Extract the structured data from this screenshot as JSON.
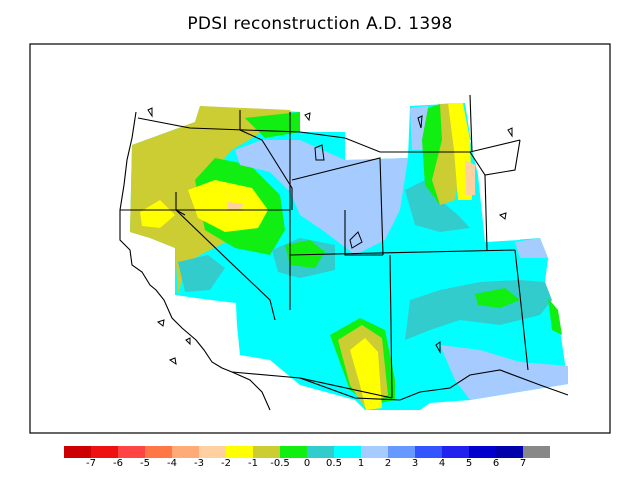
{
  "title": "PDSI reconstruction A.D. 1398",
  "legend": {
    "colors": [
      "#cc0000",
      "#ee1111",
      "#ff4444",
      "#ff7744",
      "#ffaa77",
      "#ffd0a0",
      "#ffff00",
      "#cccc33",
      "#11ee11",
      "#33cccc",
      "#00ffff",
      "#a6ccff",
      "#6699ff",
      "#3355ff",
      "#2222ee",
      "#0000cc",
      "#0000aa",
      "#888888"
    ],
    "ticks": [
      "-7",
      "-6",
      "-5",
      "-4",
      "-3",
      "-2",
      "-1",
      "-0.5",
      "0",
      "0.5",
      "1",
      "2",
      "3",
      "4",
      "5",
      "6",
      "7"
    ]
  },
  "palette": {
    "dry_strong": "#ffd0a0",
    "dry": "#ffff00",
    "slightly_dry": "#cccc33",
    "near_normal": "#11ee11",
    "slightly_wet": "#33cccc",
    "wet": "#00ffff",
    "wetter": "#a6ccff",
    "frame": "#000000"
  }
}
